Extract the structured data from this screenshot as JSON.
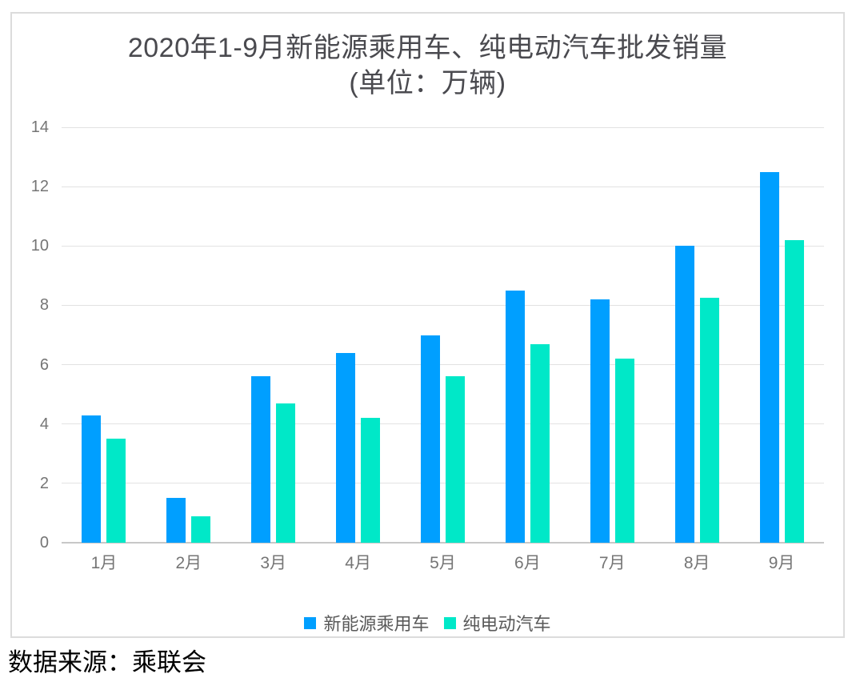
{
  "chart_data": {
    "type": "bar",
    "title_line1": "2020年1-9月新能源乘用车、纯电动汽车批发销量",
    "title_line2": "(单位：万辆)",
    "categories": [
      "1月",
      "2月",
      "3月",
      "4月",
      "5月",
      "6月",
      "7月",
      "8月",
      "9月"
    ],
    "series": [
      {
        "name": "新能源乘用车",
        "color": "#009FFF",
        "values": [
          4.3,
          1.5,
          5.6,
          6.4,
          7.0,
          8.5,
          8.2,
          10.0,
          12.5
        ]
      },
      {
        "name": "纯电动汽车",
        "color": "#00E8C8",
        "values": [
          3.5,
          0.9,
          4.7,
          4.2,
          5.6,
          6.7,
          6.2,
          8.25,
          10.2
        ]
      }
    ],
    "xlabel": "",
    "ylabel": "",
    "ylim": [
      0,
      14
    ],
    "yticks": [
      0,
      2,
      4,
      6,
      8,
      10,
      12,
      14
    ],
    "grid": true,
    "legend_position": "bottom"
  },
  "footer": {
    "source_text": "数据来源：乘联会"
  },
  "colors": {
    "title": "#4a4a4f",
    "axis_label": "#757575",
    "legend_label": "#595959",
    "gridline": "#e2e2e2",
    "axis_line": "#c8c8c8",
    "frame_border": "#dcdcdc",
    "series_blue": "#009FFF",
    "series_teal": "#00E8C8"
  }
}
